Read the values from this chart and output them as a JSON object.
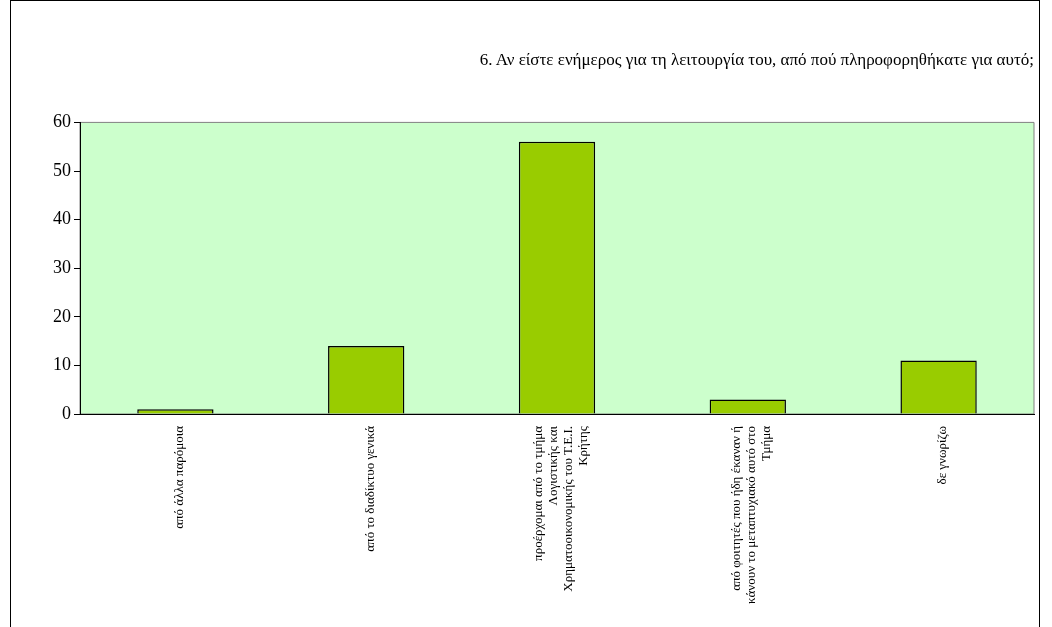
{
  "chart_data": {
    "type": "bar",
    "title": "6. Αν είστε ενήμερος για τη λειτουργία του, από πού πληροφορηθήκατε για αυτό;",
    "categories": [
      "από άλλα παρόμοια",
      "από το διαδίκτυο γενικά",
      "προέρχομαι από το τμήμα Λογιστικής και Χρηματοοικονομικής του Τ.Ε.Ι. Κρήτης",
      "από φοιτητές που ήδη έκαναν ή κάνουν το μεταπτυχιακό αυτό στο Τμήμα",
      "δε γνωρίζω"
    ],
    "values": [
      1,
      14,
      56,
      3,
      11
    ],
    "color": "#99cc00",
    "ylim": [
      0,
      60
    ],
    "yticks": [
      0,
      10,
      20,
      30,
      40,
      50,
      60
    ],
    "grid": false,
    "legend": false
  }
}
